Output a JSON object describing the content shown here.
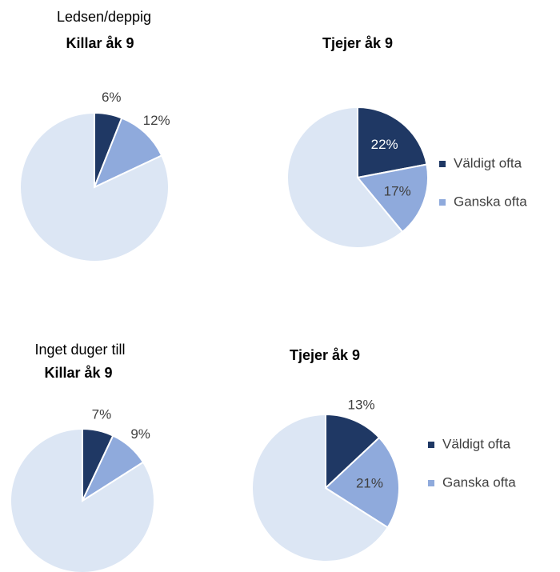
{
  "chart_data": [
    {
      "type": "pie",
      "heading": "Ledsen/deppig",
      "title": "Killar åk 9",
      "values": [
        6,
        12,
        82
      ],
      "value_labels": [
        "6%",
        "12%",
        null
      ],
      "colors": [
        "#1f3864",
        "#8faadc",
        "#dce6f4"
      ],
      "label_position": "outside",
      "legend": false
    },
    {
      "type": "pie",
      "title": "Tjejer åk 9",
      "categories": [
        "Väldigt ofta",
        "Ganska ofta",
        null
      ],
      "values": [
        22,
        17,
        61
      ],
      "value_labels": [
        "22%",
        "17%",
        null
      ],
      "colors": [
        "#1f3864",
        "#8faadc",
        "#dce6f4"
      ],
      "label_position": "inside",
      "legend": true
    },
    {
      "type": "pie",
      "heading": "Inget duger till",
      "title": "Killar åk 9",
      "values": [
        7,
        9,
        84
      ],
      "value_labels": [
        "7%",
        "9%",
        null
      ],
      "colors": [
        "#1f3864",
        "#8faadc",
        "#dce6f4"
      ],
      "label_position": "outside",
      "legend": false
    },
    {
      "type": "pie",
      "title": "Tjejer åk 9",
      "categories": [
        "Väldigt ofta",
        "Ganska ofta",
        null
      ],
      "values": [
        13,
        21,
        66
      ],
      "value_labels": [
        "13%",
        "21%",
        null
      ],
      "colors": [
        "#1f3864",
        "#8faadc",
        "#dce6f4"
      ],
      "label_position": "mixed",
      "legend": true
    }
  ]
}
